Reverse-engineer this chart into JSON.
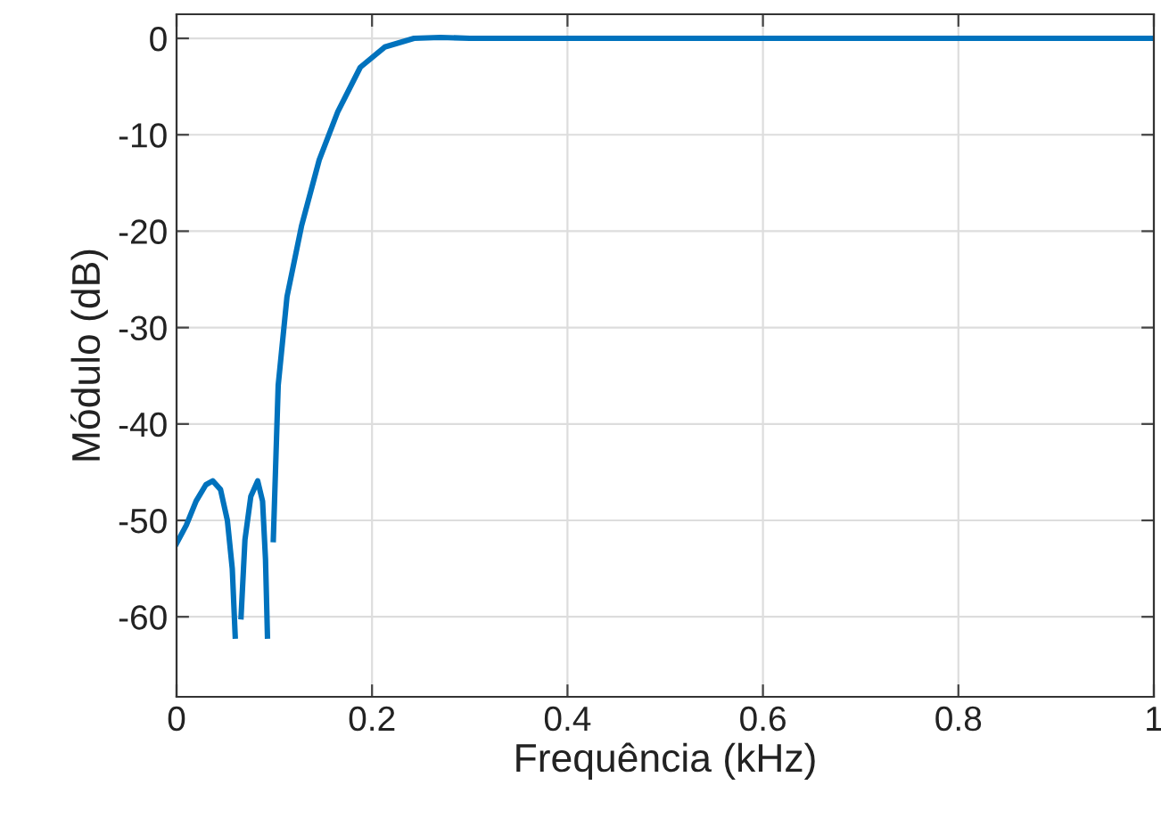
{
  "chart_data": {
    "type": "line",
    "xlabel": "Frequência (kHz)",
    "ylabel": "Módulo (dB)",
    "x": [
      0,
      0.01,
      0.02,
      0.03,
      0.037,
      0.045,
      0.052,
      0.057,
      0.06,
      0.0615,
      0.0635,
      0.066,
      0.07,
      0.076,
      0.083,
      0.088,
      0.091,
      0.093,
      0.0945,
      0.0965,
      0.099,
      0.104,
      0.113,
      0.128,
      0.146,
      0.165,
      0.188,
      0.213,
      0.243,
      0.27,
      0.3,
      0.35,
      0.4,
      0.5,
      0.6,
      0.7,
      0.8,
      0.9,
      1.0
    ],
    "series": [
      {
        "color": "#0072bd",
        "values": [
          -52.4,
          -50.5,
          -48,
          -46.3,
          -45.9,
          -46.8,
          -50,
          -55,
          -62,
          null,
          null,
          -60,
          -52,
          -47.5,
          -45.9,
          -48,
          -54,
          -62,
          null,
          null,
          -52,
          -36,
          -26.8,
          -19.4,
          -12.6,
          -7.6,
          -3.0,
          -0.9,
          0.0,
          0.1,
          0,
          0,
          0,
          0,
          0,
          0,
          0,
          0,
          0
        ]
      }
    ],
    "xlim": [
      0,
      1
    ],
    "ylim": [
      -68.3,
      2.5
    ],
    "xticks": [
      0,
      0.2,
      0.4,
      0.6,
      0.8,
      1
    ],
    "yticks": [
      -60,
      -50,
      -40,
      -30,
      -20,
      -10,
      0
    ],
    "grid": true,
    "line_style": "solid",
    "marker": "none"
  }
}
